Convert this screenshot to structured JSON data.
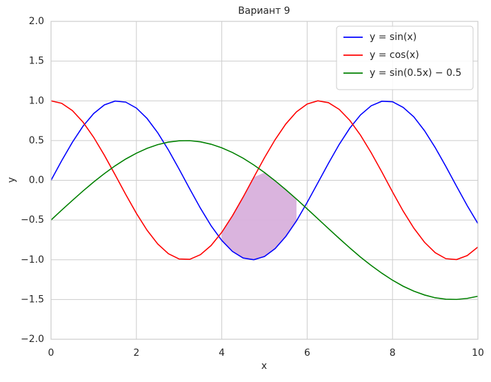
{
  "chart_data": {
    "type": "line",
    "title": "Вариант 9",
    "x_label": "x",
    "y_label": "y",
    "x": [
      0,
      0.25,
      0.5,
      0.75,
      1,
      1.25,
      1.5,
      1.75,
      2,
      2.25,
      2.5,
      2.75,
      3,
      3.25,
      3.5,
      3.75,
      4,
      4.25,
      4.5,
      4.75,
      5,
      5.25,
      5.5,
      5.75,
      6,
      6.25,
      6.5,
      6.75,
      7,
      7.25,
      7.5,
      7.75,
      8,
      8.25,
      8.5,
      8.75,
      9,
      9.25,
      9.5,
      9.75,
      10
    ],
    "series": [
      {
        "name": "y = sin(x)",
        "color": "#0000ff",
        "values": [
          0,
          0.247,
          0.479,
          0.682,
          0.841,
          0.949,
          0.997,
          0.984,
          0.909,
          0.778,
          0.598,
          0.382,
          0.141,
          -0.108,
          -0.351,
          -0.572,
          -0.757,
          -0.895,
          -0.978,
          -0.999,
          -0.959,
          -0.859,
          -0.706,
          -0.51,
          -0.279,
          -0.033,
          0.215,
          0.451,
          0.657,
          0.823,
          0.938,
          0.995,
          0.989,
          0.917,
          0.798,
          0.624,
          0.412,
          0.174,
          -0.075,
          -0.319,
          -0.544
        ]
      },
      {
        "name": "y = cos(x)",
        "color": "#ff0000",
        "values": [
          1,
          0.969,
          0.878,
          0.732,
          0.54,
          0.315,
          0.071,
          -0.178,
          -0.416,
          -0.628,
          -0.801,
          -0.924,
          -0.99,
          -0.994,
          -0.936,
          -0.82,
          -0.654,
          -0.446,
          -0.211,
          0.038,
          0.284,
          0.512,
          0.709,
          0.861,
          0.96,
          1,
          0.977,
          0.893,
          0.754,
          0.568,
          0.347,
          0.105,
          -0.146,
          -0.388,
          -0.602,
          -0.78,
          -0.911,
          -0.986,
          -0.997,
          -0.947,
          -0.839
        ]
      },
      {
        "name": "y = sin(0.5x) − 0.5",
        "color": "#008000",
        "values": [
          -0.5,
          -0.375,
          -0.253,
          -0.134,
          -0.021,
          0.085,
          0.182,
          0.268,
          0.341,
          0.402,
          0.449,
          0.481,
          0.497,
          0.499,
          0.484,
          0.454,
          0.409,
          0.35,
          0.278,
          0.193,
          0.098,
          -0.006,
          -0.118,
          -0.236,
          -0.359,
          -0.483,
          -0.608,
          -0.731,
          -0.851,
          -0.966,
          -1.072,
          -1.169,
          -1.257,
          -1.333,
          -1.395,
          -1.443,
          -1.478,
          -1.496,
          -1.499,
          -1.486,
          -1.459
        ]
      }
    ],
    "fill_color": "#d8b0dc",
    "xlim": [
      0,
      10
    ],
    "xticks": [
      0,
      2,
      4,
      6,
      8,
      10
    ],
    "ylim": [
      -2,
      2
    ],
    "yticks": [
      {
        "value": -2,
        "label": "−2.0"
      },
      {
        "value": -1.5,
        "label": "−1.5"
      },
      {
        "value": -1,
        "label": "−1.0"
      },
      {
        "value": -0.5,
        "label": "−0.5"
      },
      {
        "value": 0,
        "label": "0.0"
      },
      {
        "value": 0.5,
        "label": "0.5"
      },
      {
        "value": 1,
        "label": "1.0"
      },
      {
        "value": 1.5,
        "label": "1.5"
      },
      {
        "value": 2,
        "label": "2.0"
      }
    ],
    "grid": true,
    "legend": "upper right"
  }
}
